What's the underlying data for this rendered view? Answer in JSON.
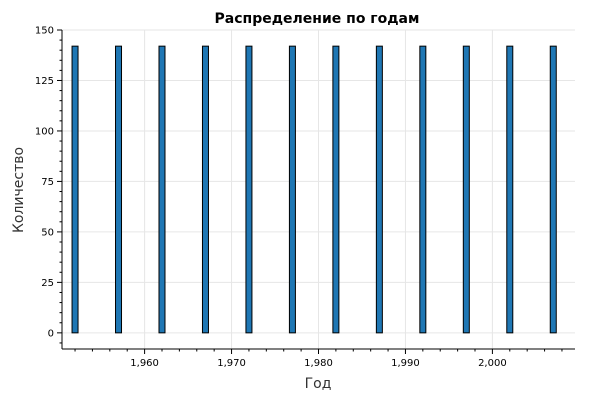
{
  "chart_data": {
    "type": "bar",
    "title": "Распределение по годам",
    "xlabel": "Год",
    "ylabel": "Количество",
    "x": [
      1952,
      1957,
      1962,
      1967,
      1972,
      1977,
      1982,
      1987,
      1992,
      1997,
      2002,
      2007
    ],
    "values": [
      142,
      142,
      142,
      142,
      142,
      142,
      142,
      142,
      142,
      142,
      142,
      142
    ],
    "xlim": [
      1950.5,
      2009.5
    ],
    "ylim": [
      -8,
      150
    ],
    "xticks": [
      1960,
      1970,
      1980,
      1990,
      2000
    ],
    "xtick_labels": [
      "1,960",
      "1,970",
      "1,980",
      "1,990",
      "2,000"
    ],
    "yticks": [
      0,
      25,
      50,
      75,
      100,
      125,
      150
    ],
    "ytick_labels": [
      "0",
      "25",
      "50",
      "75",
      "100",
      "125",
      "150"
    ],
    "grid": true,
    "bar_color": "#1f77b4"
  }
}
